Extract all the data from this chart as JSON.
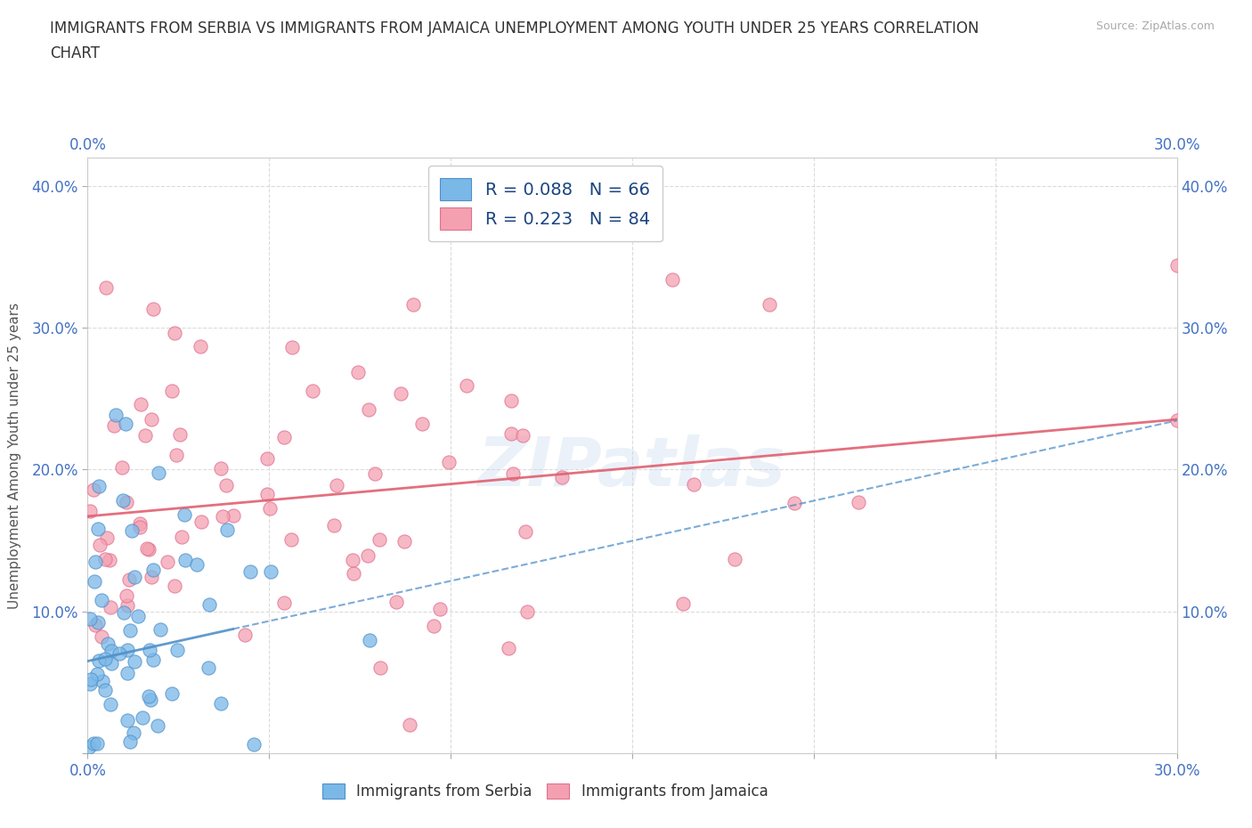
{
  "title_line1": "IMMIGRANTS FROM SERBIA VS IMMIGRANTS FROM JAMAICA UNEMPLOYMENT AMONG YOUTH UNDER 25 YEARS CORRELATION",
  "title_line2": "CHART",
  "source_text": "Source: ZipAtlas.com",
  "ylabel": "Unemployment Among Youth under 25 years",
  "xlim": [
    0.0,
    0.3
  ],
  "ylim": [
    0.0,
    0.42
  ],
  "xticks": [
    0.0,
    0.05,
    0.1,
    0.15,
    0.2,
    0.25,
    0.3
  ],
  "yticks": [
    0.0,
    0.1,
    0.2,
    0.3,
    0.4
  ],
  "xtick_labels_show": {
    "0": "0.0%",
    "6": "30.0%"
  },
  "ytick_labels_show": {
    "1": "10.0%",
    "2": "20.0%",
    "3": "30.0%",
    "4": "40.0%"
  },
  "watermark": "ZIPatlas",
  "legend_serbia": "R = 0.088   N = 66",
  "legend_jamaica": "R = 0.223   N = 84",
  "legend_bottom_serbia": "Immigrants from Serbia",
  "legend_bottom_jamaica": "Immigrants from Jamaica",
  "serbia_color": "#7ab8e8",
  "jamaica_color": "#f4a0b0",
  "serbia_edge_color": "#5090c8",
  "jamaica_edge_color": "#e07090",
  "serbia_trend_color": "#5090c8",
  "jamaica_trend_color": "#e06070",
  "background_color": "#ffffff",
  "serbia_R": 0.088,
  "jamaica_R": 0.223,
  "serbia_N": 66,
  "jamaica_N": 84
}
